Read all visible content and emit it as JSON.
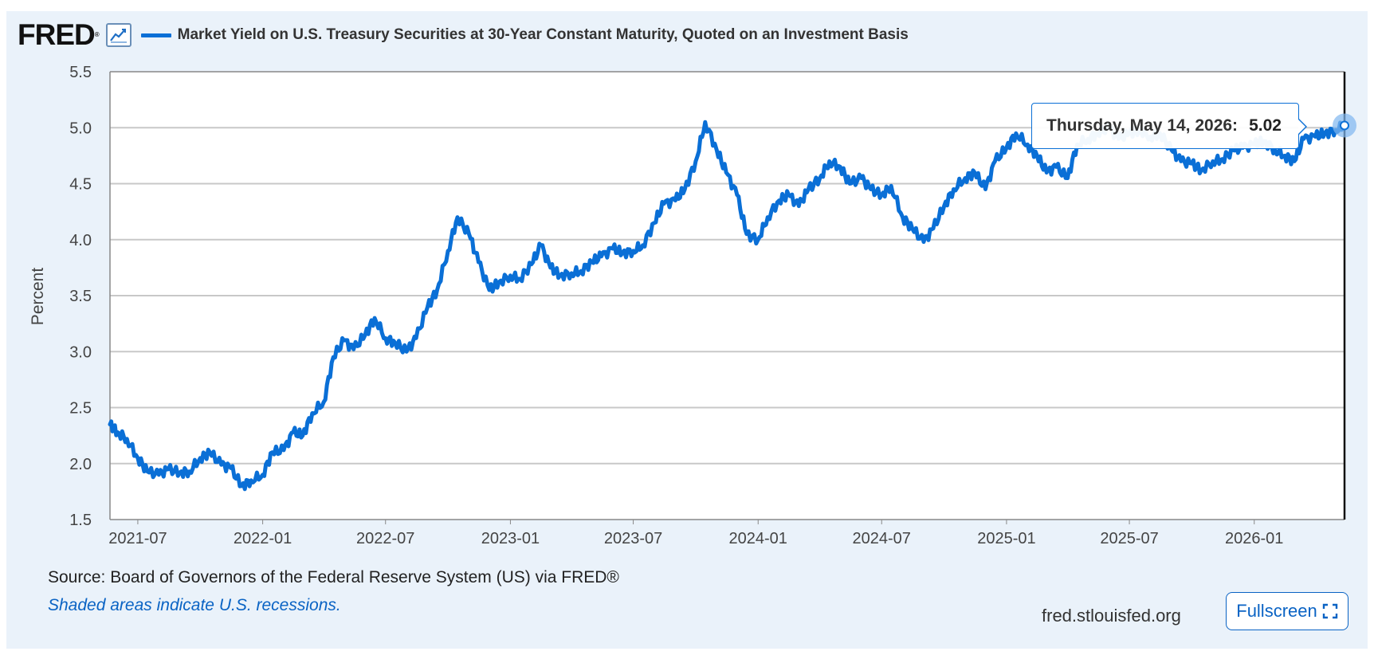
{
  "header": {
    "logo_text": "FRED",
    "logo_reg": "®",
    "legend_label": "Market Yield on U.S. Treasury Securities at 30-Year Constant Maturity, Quoted on an Investment Basis"
  },
  "tooltip": {
    "date": "Thursday, May 14, 2026:",
    "value": "5.02"
  },
  "footer": {
    "source": "Source: Board of Governors of the Federal Reserve System (US) via FRED®",
    "note": "Shaded areas indicate U.S. recessions.",
    "site": "fred.stlouisfed.org",
    "fullscreen_label": "Fullscreen"
  },
  "colors": {
    "line": "#0a6fd6",
    "background": "#eaf2fa",
    "grid": "#c8c8c8"
  },
  "icons": [
    "line-chart-icon",
    "fullscreen-expand-icon"
  ],
  "chart_data": {
    "type": "line",
    "ylabel": "Percent",
    "xlabel": "",
    "ylim": [
      1.5,
      5.5
    ],
    "yticks": [
      "1.5",
      "2.0",
      "2.5",
      "3.0",
      "3.5",
      "4.0",
      "4.5",
      "5.0",
      "5.5"
    ],
    "xlim": [
      "2021-05-21",
      "2026-05-14"
    ],
    "xticks": [
      "2021-07",
      "2022-01",
      "2022-07",
      "2023-01",
      "2023-07",
      "2024-01",
      "2024-07",
      "2025-01",
      "2025-07",
      "2026-01"
    ],
    "grid": true,
    "series": [
      {
        "name": "Market Yield on U.S. Treasury Securities at 30-Year Constant Maturity, Quoted on an Investment Basis",
        "x": [
          "2021-05-21",
          "2021-06-01",
          "2021-06-15",
          "2021-07-01",
          "2021-07-15",
          "2021-08-01",
          "2021-08-15",
          "2021-09-01",
          "2021-09-15",
          "2021-10-01",
          "2021-10-15",
          "2021-11-01",
          "2021-11-15",
          "2021-12-01",
          "2021-12-15",
          "2022-01-01",
          "2022-01-15",
          "2022-02-01",
          "2022-02-15",
          "2022-03-01",
          "2022-03-15",
          "2022-04-01",
          "2022-04-15",
          "2022-05-01",
          "2022-05-15",
          "2022-06-01",
          "2022-06-15",
          "2022-07-01",
          "2022-07-15",
          "2022-08-01",
          "2022-08-15",
          "2022-09-01",
          "2022-09-15",
          "2022-10-01",
          "2022-10-15",
          "2022-11-01",
          "2022-11-15",
          "2022-12-01",
          "2022-12-15",
          "2023-01-01",
          "2023-01-15",
          "2023-02-01",
          "2023-02-15",
          "2023-03-01",
          "2023-03-15",
          "2023-04-01",
          "2023-04-15",
          "2023-05-01",
          "2023-05-15",
          "2023-06-01",
          "2023-06-15",
          "2023-07-01",
          "2023-07-15",
          "2023-08-01",
          "2023-08-15",
          "2023-09-01",
          "2023-09-15",
          "2023-10-01",
          "2023-10-15",
          "2023-11-01",
          "2023-11-15",
          "2023-12-01",
          "2023-12-15",
          "2024-01-01",
          "2024-01-15",
          "2024-02-01",
          "2024-02-15",
          "2024-03-01",
          "2024-03-15",
          "2024-04-01",
          "2024-04-15",
          "2024-05-01",
          "2024-05-15",
          "2024-06-01",
          "2024-06-15",
          "2024-07-01",
          "2024-07-15",
          "2024-08-01",
          "2024-08-15",
          "2024-09-01",
          "2024-09-15",
          "2024-10-01",
          "2024-10-15",
          "2024-11-01",
          "2024-11-15",
          "2024-12-01",
          "2024-12-15",
          "2025-01-01",
          "2025-01-15",
          "2025-02-01",
          "2025-02-15",
          "2025-03-01",
          "2025-03-15",
          "2025-04-01",
          "2025-04-15",
          "2025-05-01",
          "2025-05-15",
          "2025-06-01",
          "2025-06-15",
          "2025-07-01",
          "2025-07-15",
          "2025-08-01",
          "2025-08-15",
          "2025-09-01",
          "2025-09-15",
          "2025-10-01",
          "2025-10-15",
          "2025-11-01",
          "2025-11-15",
          "2025-12-01",
          "2025-12-15",
          "2026-01-01",
          "2026-01-15",
          "2026-02-01",
          "2026-02-15",
          "2026-03-01",
          "2026-03-15",
          "2026-04-01",
          "2026-04-15",
          "2026-05-01",
          "2026-05-14"
        ],
        "values": [
          2.35,
          2.28,
          2.22,
          2.05,
          1.93,
          1.9,
          1.95,
          1.92,
          1.93,
          2.05,
          2.1,
          1.99,
          1.96,
          1.8,
          1.85,
          1.9,
          2.1,
          2.12,
          2.28,
          2.25,
          2.45,
          2.55,
          2.95,
          3.1,
          3.02,
          3.15,
          3.3,
          3.12,
          3.08,
          3.0,
          3.12,
          3.4,
          3.55,
          3.9,
          4.2,
          4.05,
          3.8,
          3.55,
          3.62,
          3.68,
          3.65,
          3.78,
          3.95,
          3.75,
          3.68,
          3.7,
          3.72,
          3.8,
          3.85,
          3.92,
          3.88,
          3.9,
          3.95,
          4.15,
          4.32,
          4.35,
          4.45,
          4.7,
          5.05,
          4.8,
          4.6,
          4.4,
          4.05,
          4.0,
          4.2,
          4.35,
          4.4,
          4.3,
          4.45,
          4.55,
          4.7,
          4.65,
          4.5,
          4.55,
          4.45,
          4.4,
          4.48,
          4.2,
          4.1,
          3.98,
          4.1,
          4.3,
          4.45,
          4.55,
          4.6,
          4.45,
          4.7,
          4.82,
          4.95,
          4.85,
          4.75,
          4.6,
          4.65,
          4.55,
          4.85,
          4.9,
          4.95,
          5.0,
          4.9,
          4.95,
          4.98,
          4.92,
          4.95,
          4.8,
          4.7,
          4.68,
          4.62,
          4.7,
          4.72,
          4.8,
          4.82,
          4.85,
          4.88,
          4.8,
          4.75,
          4.7,
          4.9,
          4.92,
          4.95,
          4.98,
          5.02
        ]
      }
    ]
  }
}
